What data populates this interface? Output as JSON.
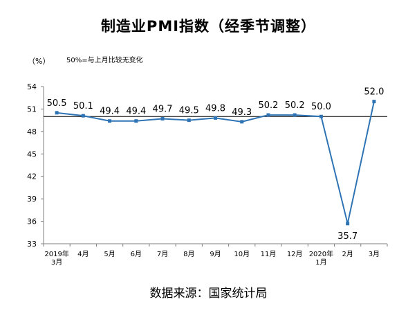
{
  "title": "制造业PMI指数（经季节调整）",
  "unit_label": "（%）",
  "reference_note": "50%=与上月比较无变化",
  "source": "数据来源：国家统计局",
  "colors": {
    "line": "#2e74b5",
    "axis": "#7f7f7f",
    "reference": "#000000"
  },
  "chart_data": {
    "type": "line",
    "title": "制造业PMI指数（经季节调整）",
    "ylabel": "（%）",
    "ylim": [
      33,
      54
    ],
    "yticks": [
      33,
      36,
      39,
      42,
      45,
      48,
      51,
      54
    ],
    "reference_line": 50,
    "grid": false,
    "categories": [
      "2019年 3月",
      "4月",
      "5月",
      "6月",
      "7月",
      "8月",
      "9月",
      "10月",
      "11月",
      "12月",
      "2020年 1月",
      "2月",
      "3月"
    ],
    "category_lines": [
      [
        "2019年",
        "3月"
      ],
      [
        "4月"
      ],
      [
        "5月"
      ],
      [
        "6月"
      ],
      [
        "7月"
      ],
      [
        "8月"
      ],
      [
        "9月"
      ],
      [
        "10月"
      ],
      [
        "11月"
      ],
      [
        "12月"
      ],
      [
        "2020年",
        "1月"
      ],
      [
        "2月"
      ],
      [
        "3月"
      ]
    ],
    "series": [
      {
        "values": [
          50.5,
          50.1,
          49.4,
          49.4,
          49.7,
          49.5,
          49.8,
          49.3,
          50.2,
          50.2,
          50.0,
          35.7,
          52.0
        ],
        "labels": [
          "50.5",
          "50.1",
          "49.4",
          "49.4",
          "49.7",
          "49.5",
          "49.8",
          "49.3",
          "50.2",
          "50.2",
          "50.0",
          "35.7",
          "52.0"
        ]
      }
    ]
  }
}
